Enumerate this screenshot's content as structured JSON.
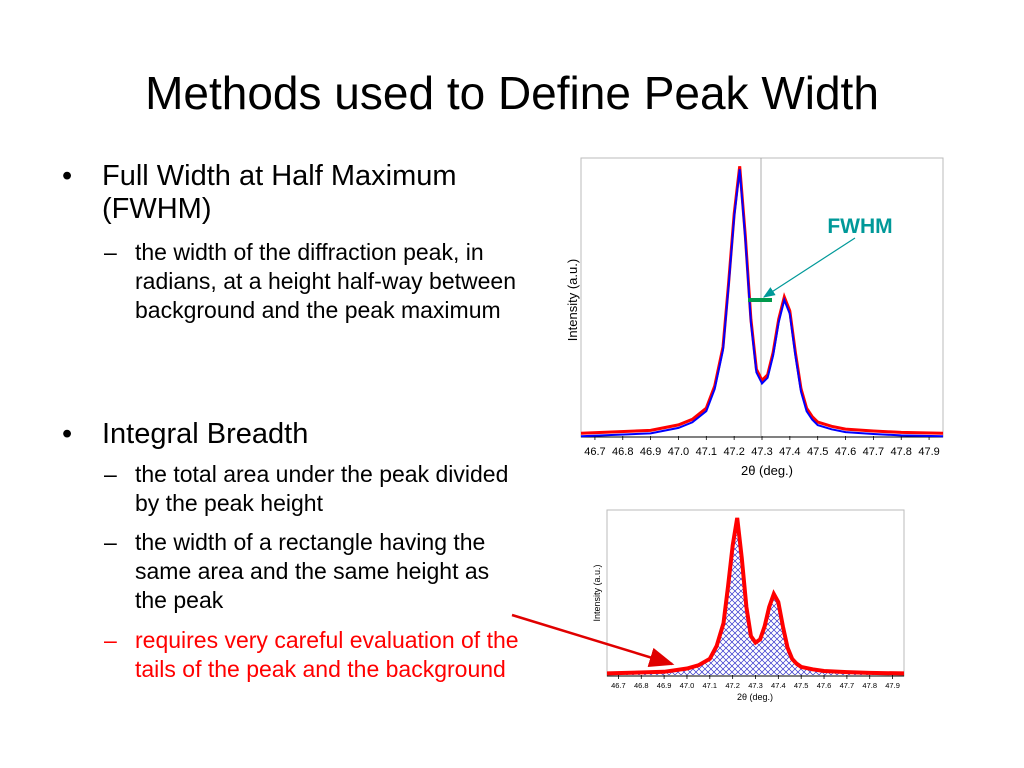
{
  "slide": {
    "title": "Methods used to Define Peak Width",
    "bullets": [
      {
        "text": "Full Width at Half Maximum (FWHM)",
        "subs": [
          {
            "text": "the width of the diffraction peak, in radians, at a height half-way between background and the peak maximum",
            "color": "#000000"
          }
        ]
      },
      {
        "text": "Integral Breadth",
        "subs": [
          {
            "text": "the total area under the peak divided by the peak height",
            "color": "#000000"
          },
          {
            "text": "the width of a rectangle having the same area and the same height as the peak",
            "color": "#000000"
          },
          {
            "text": "requires very careful evaluation of the tails of the peak and the background",
            "color": "#ff0000"
          }
        ]
      }
    ]
  },
  "chart_data": [
    {
      "type": "line",
      "xlabel": "2θ (deg.)",
      "ylabel": "Intensity (a.u.)",
      "annotation": "FWHM",
      "x_ticks": [
        "46.7",
        "46.8",
        "46.9",
        "47.0",
        "47.1",
        "47.2",
        "47.3",
        "47.4",
        "47.5",
        "47.6",
        "47.7",
        "47.8",
        "47.9"
      ],
      "xlim": [
        46.65,
        47.95
      ],
      "ylim": [
        0,
        1
      ],
      "colors": {
        "series_a": "#ff0000",
        "series_b": "#0000ff",
        "annotation": "#009999",
        "fwhm_bar": "#00994c"
      },
      "series": [
        {
          "x": [
            46.65,
            46.9,
            47.0,
            47.05,
            47.1,
            47.13,
            47.16,
            47.18,
            47.2,
            47.22,
            47.24,
            47.26,
            47.28,
            47.3,
            47.32,
            47.34,
            47.36,
            47.38,
            47.4,
            47.42,
            47.44,
            47.46,
            47.48,
            47.5,
            47.55,
            47.6,
            47.7,
            47.8,
            47.95
          ],
          "y": [
            0.01,
            0.02,
            0.04,
            0.06,
            0.1,
            0.18,
            0.32,
            0.55,
            0.8,
            0.97,
            0.72,
            0.42,
            0.24,
            0.2,
            0.22,
            0.3,
            0.42,
            0.5,
            0.45,
            0.3,
            0.17,
            0.1,
            0.07,
            0.05,
            0.035,
            0.025,
            0.018,
            0.013,
            0.01
          ]
        }
      ]
    },
    {
      "type": "area",
      "xlabel": "2θ (deg.)",
      "ylabel": "Intensity (a.u.)",
      "x_ticks": [
        "46.7",
        "46.8",
        "46.9",
        "47.0",
        "47.1",
        "47.2",
        "47.3",
        "47.4",
        "47.5",
        "47.6",
        "47.7",
        "47.8",
        "47.9"
      ],
      "xlim": [
        46.65,
        47.95
      ],
      "ylim": [
        0,
        1
      ],
      "colors": {
        "line": "#ff0000",
        "fill": "#0000cc"
      },
      "series": [
        {
          "x": [
            46.65,
            46.9,
            47.0,
            47.05,
            47.1,
            47.13,
            47.16,
            47.18,
            47.2,
            47.22,
            47.24,
            47.26,
            47.28,
            47.3,
            47.32,
            47.34,
            47.36,
            47.38,
            47.4,
            47.42,
            47.44,
            47.46,
            47.48,
            47.5,
            47.55,
            47.6,
            47.7,
            47.8,
            47.95
          ],
          "y": [
            0.01,
            0.02,
            0.04,
            0.06,
            0.1,
            0.18,
            0.32,
            0.55,
            0.8,
            0.97,
            0.72,
            0.42,
            0.24,
            0.2,
            0.22,
            0.3,
            0.42,
            0.5,
            0.45,
            0.3,
            0.17,
            0.1,
            0.07,
            0.05,
            0.035,
            0.025,
            0.018,
            0.013,
            0.01
          ]
        }
      ]
    }
  ]
}
